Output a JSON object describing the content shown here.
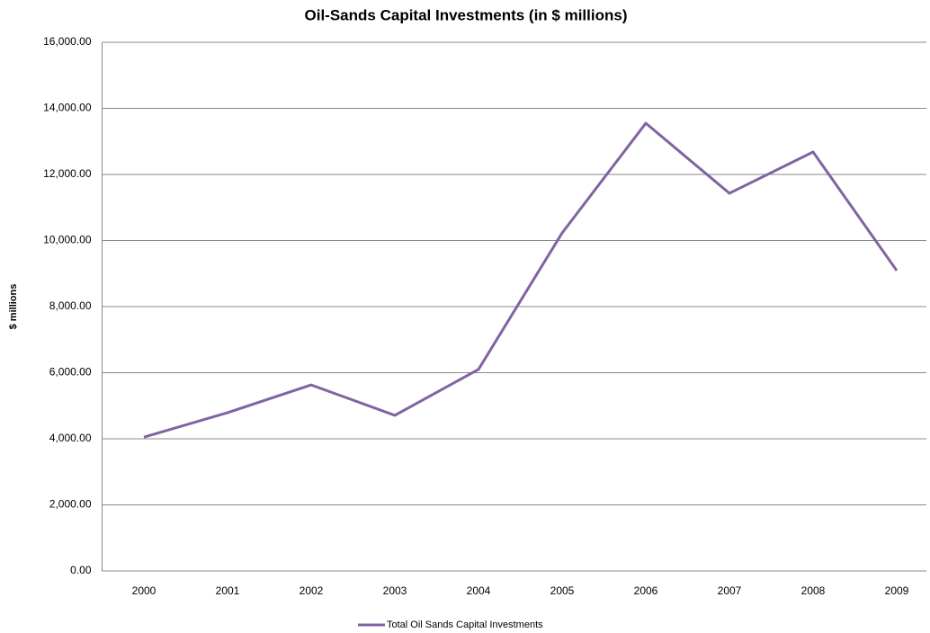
{
  "chart_data": {
    "type": "line",
    "title": "Oil-Sands Capital Investments (in $ millions)",
    "y_label": "$ millions",
    "categories": [
      "2000",
      "2001",
      "2002",
      "2003",
      "2004",
      "2005",
      "2006",
      "2007",
      "2008",
      "2009"
    ],
    "series": [
      {
        "name": "Total Oil Sands Capital Investments",
        "color": "#8064a2",
        "values": [
          4050,
          4790,
          5630,
          4710,
          6100,
          10230,
          13550,
          11430,
          12680,
          9090
        ]
      }
    ],
    "ylim": [
      0,
      16000
    ],
    "yticks": [
      {
        "value": 0,
        "label": "0.00"
      },
      {
        "value": 2000,
        "label": "2,000.00"
      },
      {
        "value": 4000,
        "label": "4,000.00"
      },
      {
        "value": 6000,
        "label": "6,000.00"
      },
      {
        "value": 8000,
        "label": "8,000.00"
      },
      {
        "value": 10000,
        "label": "10,000.00"
      },
      {
        "value": 12000,
        "label": "12,000.00"
      },
      {
        "value": 14000,
        "label": "14,000.00"
      },
      {
        "value": 16000,
        "label": "16,000.00"
      }
    ],
    "grid": true,
    "legend": "bottom"
  }
}
